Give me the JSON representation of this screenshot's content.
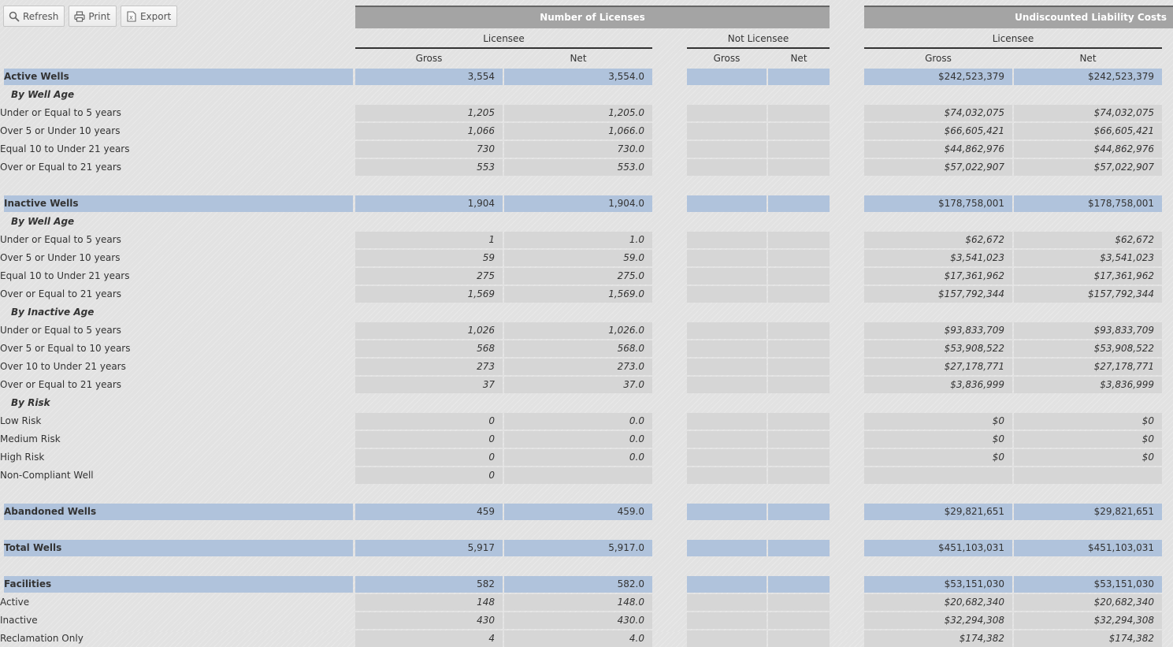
{
  "toolbar": {
    "refresh_label": "Refresh",
    "print_label": "Print",
    "export_label": "Export"
  },
  "headers": {
    "licenses_group": "Number of Licenses",
    "liability_group": "Undiscounted Liability Costs",
    "licensee": "Licensee",
    "not_licensee": "Not Licensee",
    "liability_licensee": "Licensee",
    "gross": "Gross",
    "net": "Net"
  },
  "colors": {
    "header_bar": "#a4a4a4",
    "highlight_row": "#b0c3dc",
    "cell": "#d6d6d6"
  },
  "rows": [
    {
      "label": "Active Wells",
      "type": "group",
      "gross": "3,554",
      "net": "3,554.0",
      "nl_gross": "",
      "nl_net": "",
      "liab_gross": "$242,523,379",
      "liab_net": "$242,523,379"
    },
    {
      "label": "By Well Age",
      "type": "sub1"
    },
    {
      "label": "Under or Equal to 5 years",
      "type": "item",
      "gross": "1,205",
      "net": "1,205.0",
      "nl_gross": "",
      "nl_net": "",
      "liab_gross": "$74,032,075",
      "liab_net": "$74,032,075"
    },
    {
      "label": "Over 5 or Under 10 years",
      "type": "item",
      "gross": "1,066",
      "net": "1,066.0",
      "nl_gross": "",
      "nl_net": "",
      "liab_gross": "$66,605,421",
      "liab_net": "$66,605,421"
    },
    {
      "label": "Equal 10 to Under 21 years",
      "type": "item",
      "gross": "730",
      "net": "730.0",
      "nl_gross": "",
      "nl_net": "",
      "liab_gross": "$44,862,976",
      "liab_net": "$44,862,976"
    },
    {
      "label": "Over or Equal to 21 years",
      "type": "item",
      "gross": "553",
      "net": "553.0",
      "nl_gross": "",
      "nl_net": "",
      "liab_gross": "$57,022,907",
      "liab_net": "$57,022,907"
    },
    {
      "type": "spacer"
    },
    {
      "label": "Inactive Wells",
      "type": "group",
      "gross": "1,904",
      "net": "1,904.0",
      "nl_gross": "",
      "nl_net": "",
      "liab_gross": "$178,758,001",
      "liab_net": "$178,758,001"
    },
    {
      "label": "By Well Age",
      "type": "sub1"
    },
    {
      "label": "Under or Equal to 5 years",
      "type": "item",
      "gross": "1",
      "net": "1.0",
      "nl_gross": "",
      "nl_net": "",
      "liab_gross": "$62,672",
      "liab_net": "$62,672"
    },
    {
      "label": "Over 5 or Under 10 years",
      "type": "item",
      "gross": "59",
      "net": "59.0",
      "nl_gross": "",
      "nl_net": "",
      "liab_gross": "$3,541,023",
      "liab_net": "$3,541,023"
    },
    {
      "label": "Equal 10 to Under 21 years",
      "type": "item",
      "gross": "275",
      "net": "275.0",
      "nl_gross": "",
      "nl_net": "",
      "liab_gross": "$17,361,962",
      "liab_net": "$17,361,962"
    },
    {
      "label": "Over or Equal to 21 years",
      "type": "item",
      "gross": "1,569",
      "net": "1,569.0",
      "nl_gross": "",
      "nl_net": "",
      "liab_gross": "$157,792,344",
      "liab_net": "$157,792,344"
    },
    {
      "label": "By Inactive Age",
      "type": "sub1"
    },
    {
      "label": "Under or Equal to 5 years",
      "type": "item",
      "gross": "1,026",
      "net": "1,026.0",
      "nl_gross": "",
      "nl_net": "",
      "liab_gross": "$93,833,709",
      "liab_net": "$93,833,709"
    },
    {
      "label": "Over 5 or Equal to 10 years",
      "type": "item",
      "gross": "568",
      "net": "568.0",
      "nl_gross": "",
      "nl_net": "",
      "liab_gross": "$53,908,522",
      "liab_net": "$53,908,522"
    },
    {
      "label": "Over 10 to Under 21 years",
      "type": "item",
      "gross": "273",
      "net": "273.0",
      "nl_gross": "",
      "nl_net": "",
      "liab_gross": "$27,178,771",
      "liab_net": "$27,178,771"
    },
    {
      "label": "Over or Equal to 21 years",
      "type": "item",
      "gross": "37",
      "net": "37.0",
      "nl_gross": "",
      "nl_net": "",
      "liab_gross": "$3,836,999",
      "liab_net": "$3,836,999"
    },
    {
      "label": "By Risk",
      "type": "sub1"
    },
    {
      "label": "Low Risk",
      "type": "item",
      "gross": "0",
      "net": "0.0",
      "nl_gross": "",
      "nl_net": "",
      "liab_gross": "$0",
      "liab_net": "$0"
    },
    {
      "label": "Medium Risk",
      "type": "item",
      "gross": "0",
      "net": "0.0",
      "nl_gross": "",
      "nl_net": "",
      "liab_gross": "$0",
      "liab_net": "$0"
    },
    {
      "label": "High Risk",
      "type": "item",
      "gross": "0",
      "net": "0.0",
      "nl_gross": "",
      "nl_net": "",
      "liab_gross": "$0",
      "liab_net": "$0"
    },
    {
      "label": "Non-Compliant Well",
      "type": "item",
      "gross": "0",
      "net": "",
      "nl_gross": "",
      "nl_net": "",
      "liab_gross": "",
      "liab_net": ""
    },
    {
      "type": "spacer"
    },
    {
      "label": "Abandoned Wells",
      "type": "group",
      "gross": "459",
      "net": "459.0",
      "nl_gross": "",
      "nl_net": "",
      "liab_gross": "$29,821,651",
      "liab_net": "$29,821,651"
    },
    {
      "type": "spacer"
    },
    {
      "label": "Total Wells",
      "type": "group",
      "gross": "5,917",
      "net": "5,917.0",
      "nl_gross": "",
      "nl_net": "",
      "liab_gross": "$451,103,031",
      "liab_net": "$451,103,031"
    },
    {
      "type": "spacer"
    },
    {
      "label": "Facilities",
      "type": "group",
      "gross": "582",
      "net": "582.0",
      "nl_gross": "",
      "nl_net": "",
      "liab_gross": "$53,151,030",
      "liab_net": "$53,151,030"
    },
    {
      "label": "Active",
      "type": "item",
      "gross": "148",
      "net": "148.0",
      "nl_gross": "",
      "nl_net": "",
      "liab_gross": "$20,682,340",
      "liab_net": "$20,682,340"
    },
    {
      "label": "Inactive",
      "type": "item",
      "gross": "430",
      "net": "430.0",
      "nl_gross": "",
      "nl_net": "",
      "liab_gross": "$32,294,308",
      "liab_net": "$32,294,308"
    },
    {
      "label": "Reclamation Only",
      "type": "item",
      "gross": "4",
      "net": "4.0",
      "nl_gross": "",
      "nl_net": "",
      "liab_gross": "$174,382",
      "liab_net": "$174,382"
    }
  ]
}
